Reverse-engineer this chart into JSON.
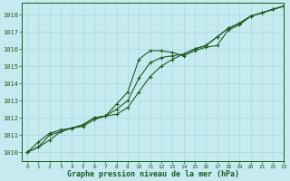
{
  "xlabel": "Graphe pression niveau de la mer (hPa)",
  "bg_color": "#c5eaf0",
  "grid_color": "#a8d8e0",
  "line_color": "#1e5c1e",
  "ylim": [
    1009.5,
    1018.7
  ],
  "xlim": [
    -0.5,
    23
  ],
  "yticks": [
    1010,
    1011,
    1012,
    1013,
    1014,
    1015,
    1016,
    1017,
    1018
  ],
  "xticks": [
    0,
    1,
    2,
    3,
    4,
    5,
    6,
    7,
    8,
    9,
    10,
    11,
    12,
    13,
    14,
    15,
    16,
    17,
    18,
    19,
    20,
    21,
    22,
    23
  ],
  "series1_x": [
    0,
    1,
    2,
    3,
    4,
    5,
    6,
    7,
    8,
    9,
    10,
    11,
    12,
    13,
    14,
    15,
    16,
    17,
    18,
    19,
    20,
    21,
    22,
    23
  ],
  "series1_y": [
    1010.0,
    1010.3,
    1010.7,
    1011.2,
    1011.4,
    1011.5,
    1011.9,
    1012.1,
    1012.8,
    1013.5,
    1015.4,
    1015.9,
    1015.9,
    1015.8,
    1015.6,
    1015.9,
    1016.1,
    1016.2,
    1017.1,
    1017.4,
    1017.9,
    1018.1,
    1018.3,
    1018.5
  ],
  "series2_x": [
    0,
    1,
    2,
    3,
    4,
    5,
    6,
    7,
    8,
    9,
    10,
    11,
    12,
    13,
    14,
    15,
    16,
    17,
    18,
    19,
    20,
    21,
    22,
    23
  ],
  "series2_y": [
    1010.0,
    1010.6,
    1011.1,
    1011.3,
    1011.4,
    1011.6,
    1012.0,
    1012.1,
    1012.5,
    1013.0,
    1014.3,
    1015.2,
    1015.5,
    1015.6,
    1015.7,
    1016.0,
    1016.2,
    1016.7,
    1017.2,
    1017.5,
    1017.9,
    1018.1,
    1018.3,
    1018.5
  ],
  "series3_x": [
    0,
    1,
    2,
    3,
    4,
    5,
    6,
    7,
    8,
    9,
    10,
    11,
    12,
    13,
    14,
    15,
    16,
    17,
    18,
    19,
    20,
    21,
    22,
    23
  ],
  "series3_y": [
    1010.0,
    1010.3,
    1011.0,
    1011.2,
    1011.4,
    1011.6,
    1012.0,
    1012.1,
    1012.2,
    1012.6,
    1013.5,
    1014.4,
    1015.0,
    1015.4,
    1015.7,
    1016.0,
    1016.2,
    1016.7,
    1017.2,
    1017.5,
    1017.9,
    1018.1,
    1018.3,
    1018.5
  ]
}
